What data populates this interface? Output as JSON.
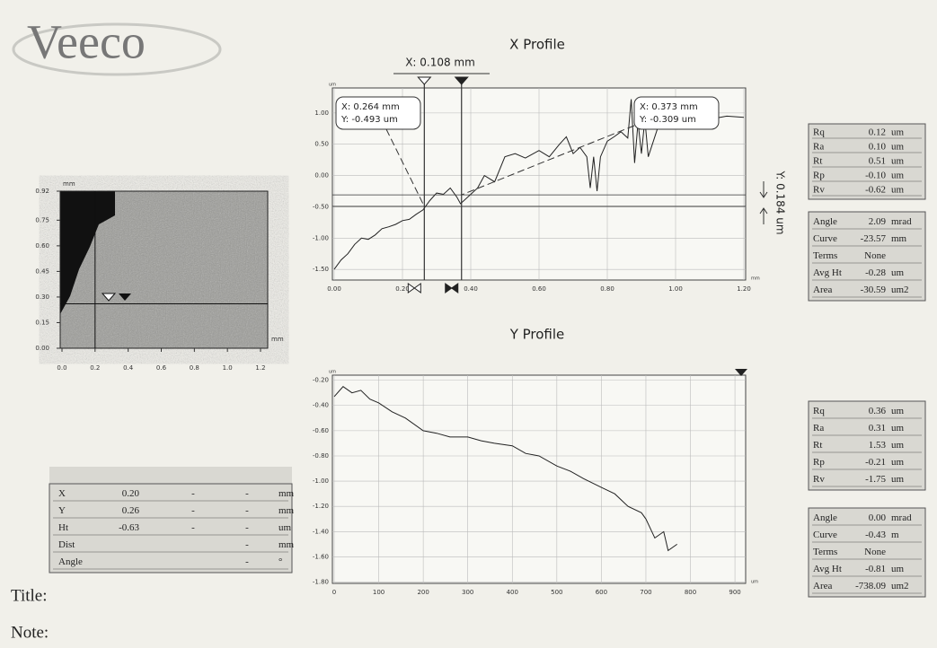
{
  "logo": "Veeco",
  "chart_data": [
    {
      "type": "line",
      "title": "X Profile",
      "x_unit": "mm",
      "y_unit": "um",
      "grid": true,
      "color": "#222222",
      "x": [
        0,
        0.02,
        0.04,
        0.06,
        0.08,
        0.1,
        0.12,
        0.14,
        0.16,
        0.18,
        0.2,
        0.22,
        0.24,
        0.26,
        0.28,
        0.3,
        0.32,
        0.34,
        0.36,
        0.37,
        0.4,
        0.42,
        0.44,
        0.47,
        0.5,
        0.53,
        0.56,
        0.6,
        0.63,
        0.66,
        0.68,
        0.7,
        0.72,
        0.74,
        0.75,
        0.76,
        0.77,
        0.78,
        0.8,
        0.82,
        0.84,
        0.86,
        0.87,
        0.88,
        0.89,
        0.9,
        0.91,
        0.92,
        0.95,
        0.98,
        1.0,
        1.05,
        1.1,
        1.15,
        1.2
      ],
      "values": [
        -1.5,
        -1.35,
        -1.25,
        -1.1,
        -1.0,
        -1.02,
        -0.95,
        -0.85,
        -0.82,
        -0.78,
        -0.72,
        -0.7,
        -0.62,
        -0.55,
        -0.4,
        -0.28,
        -0.3,
        -0.2,
        -0.35,
        -0.45,
        -0.3,
        -0.2,
        0.0,
        -0.1,
        0.3,
        0.35,
        0.28,
        0.4,
        0.3,
        0.5,
        0.62,
        0.35,
        0.45,
        0.3,
        -0.2,
        0.3,
        -0.25,
        0.3,
        0.55,
        0.62,
        0.7,
        0.6,
        1.22,
        0.2,
        0.85,
        0.35,
        0.9,
        0.3,
        0.8,
        0.85,
        0.82,
        0.88,
        0.9,
        0.95,
        0.93
      ],
      "xlim": [
        0,
        1.2
      ],
      "ylim": [
        -1.67,
        1.4
      ],
      "xticks": [
        {
          "value": 0,
          "label": "0.00"
        },
        {
          "value": 0.2,
          "label": "0.20"
        },
        {
          "value": 0.4,
          "label": "0.40"
        },
        {
          "value": 0.6,
          "label": "0.60"
        },
        {
          "value": 0.8,
          "label": "0.80"
        },
        {
          "value": 1,
          "label": "1.00"
        },
        {
          "value": 1.2,
          "label": "1.20"
        }
      ],
      "yticks": [
        {
          "value": -1.5,
          "label": "-1.50"
        },
        {
          "value": -1,
          "label": "-1.00"
        },
        {
          "value": -0.5,
          "label": "-0.50"
        },
        {
          "value": 0,
          "label": "0.00"
        },
        {
          "value": 0.5,
          "label": "0.50"
        },
        {
          "value": 1,
          "label": "1.00"
        }
      ],
      "cursors_x": [
        0.264,
        0.373
      ],
      "cursors_y": [
        -0.309,
        -0.493
      ],
      "annotations": [
        "X: 0.108 mm",
        "X: 0.264 mm",
        "Y: -0.493 um",
        "X: 0.373 mm",
        "Y: -0.309 um",
        "Y: 0.184 um"
      ]
    },
    {
      "type": "line",
      "title": "Y Profile",
      "x_unit": "um",
      "y_unit": "um",
      "grid": true,
      "color": "#222222",
      "x": [
        0,
        20,
        40,
        60,
        80,
        100,
        130,
        160,
        200,
        230,
        260,
        300,
        330,
        360,
        400,
        430,
        460,
        500,
        530,
        560,
        600,
        630,
        660,
        690,
        700,
        720,
        740,
        750,
        770
      ],
      "values": [
        -0.33,
        -0.25,
        -0.3,
        -0.28,
        -0.35,
        -0.38,
        -0.45,
        -0.5,
        -0.6,
        -0.62,
        -0.65,
        -0.65,
        -0.68,
        -0.7,
        -0.72,
        -0.78,
        -0.8,
        -0.88,
        -0.92,
        -0.98,
        -1.05,
        -1.1,
        -1.2,
        -1.25,
        -1.3,
        -1.45,
        -1.4,
        -1.55,
        -1.5
      ],
      "xlim": [
        0,
        920
      ],
      "ylim": [
        -1.81,
        -0.16
      ],
      "xticks": [
        0,
        100,
        200,
        300,
        400,
        500,
        600,
        700,
        800,
        900
      ],
      "yticks": [
        {
          "value": -1.8,
          "label": "-1.80"
        },
        {
          "value": -1.6,
          "label": "-1.60"
        },
        {
          "value": -1.4,
          "label": "-1.40"
        },
        {
          "value": -1.2,
          "label": "-1.20"
        },
        {
          "value": -1,
          "label": "-1.00"
        },
        {
          "value": -0.8,
          "label": "-0.80"
        },
        {
          "value": -0.6,
          "label": "-0.60"
        },
        {
          "value": -0.4,
          "label": "-0.40"
        },
        {
          "value": -0.2,
          "label": "-0.20"
        }
      ]
    }
  ],
  "image_map": {
    "x_unit": "mm",
    "y_unit": "mm",
    "xlim": [
      0,
      1.2
    ],
    "ylim": [
      0,
      0.92
    ],
    "xticks": [
      {
        "value": 0,
        "label": "0.0"
      },
      {
        "value": 0.2,
        "label": "0.2"
      },
      {
        "value": 0.4,
        "label": "0.4"
      },
      {
        "value": 0.6,
        "label": "0.6"
      },
      {
        "value": 0.8,
        "label": "0.8"
      },
      {
        "value": 1,
        "label": "1.0"
      },
      {
        "value": 1.2,
        "label": "1.2"
      }
    ],
    "yticks": [
      {
        "value": 0,
        "label": "0.00"
      },
      {
        "value": 0.15,
        "label": "0.15"
      },
      {
        "value": 0.3,
        "label": "0.30"
      },
      {
        "value": 0.45,
        "label": "0.45"
      },
      {
        "value": 0.6,
        "label": "0.60"
      },
      {
        "value": 0.75,
        "label": "0.75"
      },
      {
        "value": 0.92,
        "label": "0.92"
      }
    ],
    "cursor": {
      "x": 0.2,
      "y": 0.26
    }
  },
  "x_stats": [
    [
      [
        "Rq",
        "0.12",
        "um"
      ],
      [
        "Ra",
        "0.10",
        "um"
      ],
      [
        "Rt",
        "0.51",
        "um"
      ],
      [
        "Rp",
        "-0.10",
        "um"
      ],
      [
        "Rv",
        "-0.62",
        "um"
      ]
    ],
    [
      [
        "Angle",
        "2.09",
        "mrad"
      ],
      [
        "Curve",
        "-23.57",
        "mm"
      ],
      [
        "Terms",
        "None",
        ""
      ],
      [
        "Avg Ht",
        "-0.28",
        "um"
      ],
      [
        "Area",
        "-30.59",
        "um2"
      ]
    ]
  ],
  "y_stats": [
    [
      [
        "Rq",
        "0.36",
        "um"
      ],
      [
        "Ra",
        "0.31",
        "um"
      ],
      [
        "Rt",
        "1.53",
        "um"
      ],
      [
        "Rp",
        "-0.21",
        "um"
      ],
      [
        "Rv",
        "-1.75",
        "um"
      ]
    ],
    [
      [
        "Angle",
        "0.00",
        "mrad"
      ],
      [
        "Curve",
        "-0.43",
        "m"
      ],
      [
        "Terms",
        "None",
        ""
      ],
      [
        "Avg Ht",
        "-0.81",
        "um"
      ],
      [
        "Area",
        "-738.09",
        "um2"
      ]
    ]
  ],
  "cursor_table": [
    [
      "X",
      "0.20",
      "-",
      "-",
      "mm"
    ],
    [
      "Y",
      "0.26",
      "-",
      "-",
      "mm"
    ],
    [
      "Ht",
      "-0.63",
      "-",
      "-",
      "um"
    ],
    [
      "Dist",
      "",
      "",
      "-",
      "mm"
    ],
    [
      "Angle",
      "",
      "",
      "-",
      "°"
    ]
  ],
  "footer": {
    "title": "Title:",
    "note": "Note:"
  }
}
